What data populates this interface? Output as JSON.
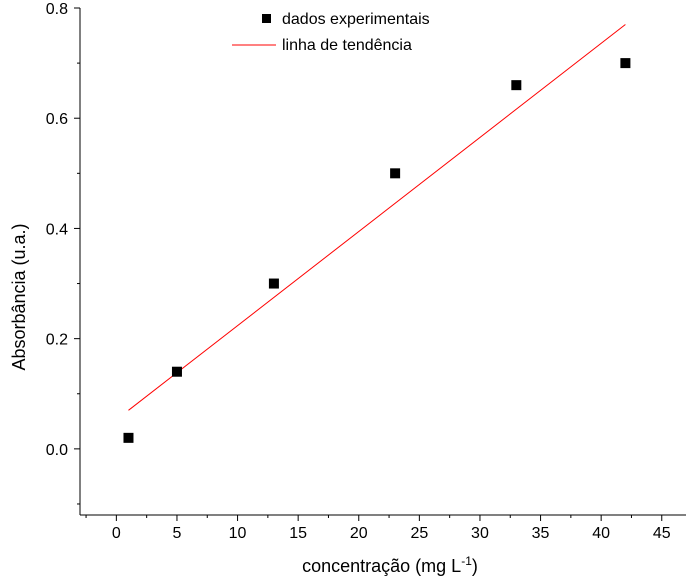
{
  "chart_data": {
    "type": "scatter",
    "title": "",
    "xlabel": "concentração (mg L",
    "xlabel_superscript": "-1",
    "xlabel_suffix": ")",
    "ylabel": "Absorbância (u.a.)",
    "xlim": [
      -3,
      47
    ],
    "ylim": [
      -0.12,
      0.8
    ],
    "x_ticks": [
      0,
      5,
      10,
      15,
      20,
      25,
      30,
      35,
      40,
      45
    ],
    "x_tick_labels": [
      "0",
      "5",
      "10",
      "15",
      "20",
      "25",
      "30",
      "35",
      "40",
      "45"
    ],
    "y_ticks": [
      0.0,
      0.2,
      0.4,
      0.6,
      0.8
    ],
    "y_tick_labels": [
      "0.0",
      "0.2",
      "0.4",
      "0.6",
      "0.8"
    ],
    "grid": false,
    "legend_position": "top-center",
    "series": [
      {
        "name": "dados experimentais",
        "kind": "points",
        "marker": "square",
        "color": "#000000",
        "x": [
          1,
          5,
          13,
          23,
          33,
          42
        ],
        "y": [
          0.02,
          0.14,
          0.3,
          0.5,
          0.66,
          0.7
        ]
      },
      {
        "name": "linha de tendência",
        "kind": "line",
        "color": "#ff0000",
        "x": [
          1,
          42
        ],
        "y": [
          0.07,
          0.77
        ]
      }
    ]
  }
}
